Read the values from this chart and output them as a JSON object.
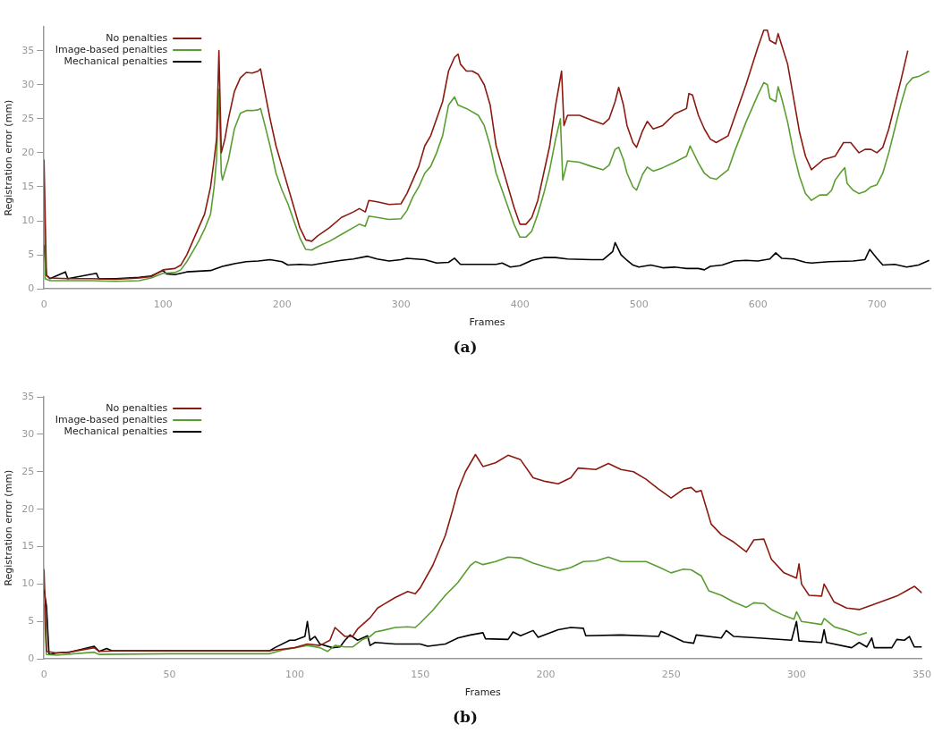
{
  "chart_data": [
    {
      "type": "line",
      "title": "(a)",
      "xlabel": "Frames",
      "ylabel": "Registration error (mm)",
      "xlim": [
        0,
        745
      ],
      "xticks": [
        0,
        100,
        200,
        300,
        400,
        500,
        600,
        700
      ],
      "ylim": [
        0,
        38.5
      ],
      "yticks": [
        0,
        5,
        10,
        15,
        20,
        25,
        30,
        35
      ],
      "grid": false,
      "legend": "top left",
      "marker": "none",
      "line_style": "solid",
      "series": [
        {
          "name": "No penalties",
          "color": "#8b1a10",
          "x": [
            0,
            2,
            5,
            20,
            40,
            60,
            80,
            90,
            100,
            110,
            115,
            120,
            125,
            130,
            135,
            140,
            143,
            145,
            147,
            149,
            152,
            155,
            160,
            165,
            170,
            175,
            180,
            182,
            185,
            190,
            195,
            200,
            205,
            210,
            215,
            220,
            225,
            230,
            240,
            250,
            260,
            265,
            270,
            273,
            280,
            290,
            300,
            305,
            310,
            315,
            320,
            325,
            330,
            335,
            340,
            345,
            348,
            350,
            355,
            360,
            365,
            370,
            375,
            380,
            385,
            390,
            395,
            400,
            405,
            410,
            415,
            420,
            425,
            430,
            435,
            437,
            440,
            450,
            460,
            470,
            475,
            480,
            483,
            487,
            490,
            495,
            498,
            503,
            507,
            512,
            520,
            530,
            540,
            542,
            545,
            550,
            555,
            560,
            565,
            575,
            580,
            590,
            600,
            605,
            608,
            610,
            615,
            617,
            620,
            625,
            630,
            635,
            640,
            645,
            655,
            665,
            672,
            678,
            685,
            690,
            695,
            700,
            705,
            710,
            715,
            720,
            726
          ],
          "values": [
            19,
            2,
            1.6,
            1.5,
            1.5,
            1.4,
            1.6,
            1.8,
            2.8,
            3,
            3.5,
            5,
            7,
            9,
            11,
            15,
            19,
            22,
            35,
            20,
            22,
            25,
            29,
            31,
            31.8,
            31.7,
            32,
            32.3,
            29.5,
            25,
            21,
            18,
            15,
            12,
            9,
            7.2,
            7,
            7.8,
            9,
            10.5,
            11.3,
            11.8,
            11.3,
            13,
            12.8,
            12.4,
            12.5,
            14,
            16,
            18,
            21,
            22.5,
            25,
            27.5,
            32,
            34,
            34.5,
            33,
            32,
            32,
            31.5,
            30,
            27,
            21,
            18,
            15,
            12,
            9.5,
            9.5,
            10.5,
            13,
            17,
            21,
            27,
            32,
            24,
            25.5,
            25.5,
            24.8,
            24.2,
            25,
            27.5,
            29.6,
            27,
            24,
            21.5,
            20.8,
            23.2,
            24.6,
            23.5,
            24,
            25.7,
            26.5,
            28.7,
            28.5,
            25.5,
            23.5,
            22,
            21.5,
            22.5,
            25,
            30,
            35.5,
            38,
            38,
            36.5,
            36,
            37.5,
            35.8,
            33,
            28,
            23,
            19.5,
            17.5,
            19,
            19.5,
            21.5,
            21.5,
            20,
            20.5,
            20.5,
            20,
            20.8,
            23.5,
            27,
            30.5,
            35
          ]
        },
        {
          "name": "Image-based penalties",
          "color": "#5a9e32",
          "x": [
            0,
            1,
            5,
            20,
            40,
            60,
            80,
            90,
            100,
            110,
            115,
            120,
            125,
            130,
            135,
            140,
            143,
            145,
            147,
            149,
            150,
            155,
            160,
            165,
            170,
            175,
            180,
            182,
            185,
            190,
            195,
            200,
            205,
            210,
            215,
            220,
            225,
            230,
            240,
            250,
            260,
            265,
            270,
            273,
            280,
            290,
            300,
            305,
            310,
            315,
            320,
            325,
            330,
            335,
            340,
            345,
            348,
            355,
            365,
            370,
            375,
            380,
            385,
            390,
            395,
            400,
            405,
            410,
            415,
            420,
            425,
            430,
            434,
            436,
            440,
            450,
            460,
            470,
            475,
            480,
            483,
            487,
            490,
            495,
            498,
            503,
            507,
            512,
            520,
            530,
            540,
            543,
            550,
            555,
            560,
            565,
            575,
            580,
            590,
            600,
            605,
            608,
            610,
            615,
            617,
            620,
            625,
            630,
            635,
            640,
            645,
            652,
            658,
            662,
            665,
            670,
            673,
            675,
            680,
            685,
            690,
            695,
            700,
            705,
            710,
            715,
            720,
            725,
            730,
            735,
            744
          ],
          "values": [
            15,
            1.5,
            1.2,
            1.2,
            1.2,
            1.1,
            1.2,
            1.6,
            2.3,
            2.4,
            2.8,
            4,
            5.5,
            7,
            8.8,
            11,
            15,
            19,
            29.3,
            17,
            16,
            19,
            23.5,
            25.8,
            26.2,
            26.2,
            26.3,
            26.5,
            24.5,
            21,
            17,
            14.5,
            12.5,
            10,
            7.5,
            5.8,
            5.7,
            6.2,
            7,
            8,
            9,
            9.5,
            9.2,
            10.7,
            10.5,
            10.2,
            10.3,
            11.5,
            13.5,
            15,
            17,
            18,
            20,
            22.5,
            27,
            28.2,
            27,
            26.5,
            25.5,
            24,
            21,
            17,
            14.5,
            12,
            9.5,
            7.6,
            7.6,
            8.5,
            11,
            14,
            17.5,
            22,
            25,
            16,
            18.8,
            18.6,
            18,
            17.5,
            18.2,
            20.5,
            20.8,
            19,
            17,
            15,
            14.5,
            16.8,
            17.9,
            17.3,
            17.8,
            18.6,
            19.5,
            21,
            18.5,
            17,
            16.3,
            16.1,
            17.5,
            20,
            24.5,
            28.5,
            30.3,
            30,
            28,
            27.5,
            29.7,
            28,
            24.5,
            20,
            16.5,
            14,
            13,
            13.8,
            13.8,
            14.5,
            16,
            17.2,
            17.8,
            15.5,
            14.5,
            14,
            14.3,
            15,
            15.3,
            17,
            20,
            23.5,
            27,
            30,
            31,
            31.2,
            32
          ]
        },
        {
          "name": "Mechanical penalties",
          "color": "#000000",
          "x": [
            0,
            2,
            5,
            18,
            20,
            44,
            46,
            60,
            80,
            90,
            95,
            100,
            103,
            110,
            120,
            130,
            140,
            150,
            160,
            170,
            180,
            190,
            200,
            205,
            215,
            225,
            235,
            250,
            260,
            272,
            280,
            290,
            300,
            305,
            320,
            330,
            340,
            345,
            350,
            360,
            380,
            385,
            392,
            400,
            410,
            420,
            430,
            440,
            460,
            470,
            478,
            480,
            485,
            490,
            495,
            500,
            510,
            520,
            530,
            540,
            550,
            555,
            560,
            570,
            580,
            590,
            600,
            610,
            615,
            620,
            630,
            640,
            645,
            660,
            680,
            690,
            694,
            700,
            705,
            715,
            725,
            735,
            744
          ],
          "values": [
            6.5,
            2,
            1.5,
            2.5,
            1.5,
            2.3,
            1.5,
            1.5,
            1.7,
            1.9,
            2.3,
            2.7,
            2.2,
            2.1,
            2.5,
            2.6,
            2.7,
            3.3,
            3.7,
            4,
            4.1,
            4.3,
            4,
            3.5,
            3.6,
            3.5,
            3.8,
            4.2,
            4.4,
            4.8,
            4.4,
            4.1,
            4.3,
            4.5,
            4.3,
            3.8,
            3.9,
            4.5,
            3.6,
            3.6,
            3.6,
            3.8,
            3.2,
            3.4,
            4.2,
            4.6,
            4.6,
            4.4,
            4.3,
            4.3,
            5.5,
            6.8,
            5,
            4.2,
            3.5,
            3.2,
            3.5,
            3.1,
            3.2,
            3,
            3,
            2.8,
            3.3,
            3.5,
            4.1,
            4.2,
            4.1,
            4.4,
            5.3,
            4.5,
            4.4,
            3.9,
            3.8,
            4,
            4.1,
            4.3,
            5.8,
            4.5,
            3.5,
            3.6,
            3.2,
            3.5,
            4.2
          ]
        }
      ]
    },
    {
      "type": "line",
      "title": "(b)",
      "xlabel": "Frames",
      "ylabel": "Registration error (mm)",
      "xlim": [
        0,
        350
      ],
      "xticks": [
        0,
        50,
        100,
        150,
        200,
        250,
        300,
        350
      ],
      "ylim": [
        0,
        35
      ],
      "yticks": [
        0,
        5,
        10,
        15,
        20,
        25,
        30,
        35
      ],
      "grid": false,
      "legend": "top left",
      "marker": "none",
      "line_style": "solid",
      "series": [
        {
          "name": "No penalties",
          "color": "#8b1a10",
          "x": [
            0,
            1,
            5,
            10,
            20,
            22,
            30,
            50,
            90,
            100,
            105,
            110,
            114,
            116,
            120,
            123,
            125,
            130,
            133,
            135,
            140,
            145,
            148,
            150,
            155,
            160,
            163,
            165,
            168,
            172,
            175,
            180,
            185,
            190,
            195,
            200,
            205,
            210,
            213,
            220,
            225,
            230,
            235,
            240,
            245,
            250,
            255,
            258,
            260,
            262,
            266,
            270,
            275,
            280,
            283,
            287,
            290,
            295,
            300,
            301,
            302,
            305,
            310,
            311,
            315,
            320,
            325,
            330,
            340,
            347,
            350
          ],
          "values": [
            12,
            1,
            0.8,
            0.9,
            1.5,
            1,
            1.1,
            1.1,
            1.1,
            1.5,
            2,
            1.8,
            2.5,
            4.2,
            3,
            3,
            4,
            5.5,
            6.8,
            7.2,
            8.2,
            9,
            8.7,
            9.5,
            12.5,
            16.5,
            20,
            22.5,
            25,
            27.3,
            25.7,
            26.2,
            27.2,
            26.6,
            24.2,
            23.7,
            23.4,
            24.2,
            25.5,
            25.3,
            26.1,
            25.3,
            25,
            24,
            22.7,
            21.5,
            22.7,
            22.9,
            22.3,
            22.5,
            18,
            16.6,
            15.6,
            14.3,
            15.9,
            16,
            13.3,
            11.5,
            10.8,
            12.7,
            10,
            8.5,
            8.4,
            10,
            7.6,
            6.8,
            6.6,
            7.2,
            8.4,
            9.7,
            8.8
          ]
        },
        {
          "name": "Image-based penalties",
          "color": "#5a9e32",
          "x": [
            0,
            1,
            5,
            20,
            22,
            50,
            90,
            95,
            105,
            110,
            113,
            116,
            120,
            123,
            127,
            130,
            132,
            135,
            140,
            145,
            148,
            150,
            155,
            160,
            165,
            170,
            172,
            175,
            180,
            185,
            190,
            195,
            200,
            205,
            210,
            215,
            220,
            225,
            230,
            240,
            245,
            250,
            255,
            258,
            262,
            265,
            270,
            275,
            280,
            283,
            287,
            290,
            295,
            299,
            300,
            302,
            310,
            311,
            315,
            320,
            325,
            328
          ],
          "values": [
            7.3,
            0.6,
            0.5,
            0.9,
            0.6,
            0.7,
            0.7,
            1.2,
            1.8,
            1.5,
            1,
            1.8,
            1.6,
            1.6,
            2.6,
            3,
            3.6,
            3.8,
            4.2,
            4.3,
            4.2,
            4.8,
            6.5,
            8.5,
            10.2,
            12.5,
            13,
            12.6,
            13,
            13.6,
            13.5,
            12.8,
            12.3,
            11.8,
            12.2,
            13,
            13.1,
            13.6,
            13,
            13,
            12.3,
            11.5,
            12,
            11.9,
            11.1,
            9.1,
            8.5,
            7.6,
            6.9,
            7.5,
            7.4,
            6.6,
            5.8,
            5.3,
            6.3,
            5,
            4.6,
            5.4,
            4.3,
            3.8,
            3.2,
            3.5
          ]
        },
        {
          "name": "Mechanical penalties",
          "color": "#000000",
          "x": [
            0,
            1,
            2,
            5,
            10,
            20,
            22,
            25,
            27,
            50,
            90,
            92,
            98,
            100,
            104,
            105,
            106,
            108,
            110,
            115,
            118,
            120,
            122,
            125,
            129,
            130,
            132,
            140,
            150,
            153,
            160,
            165,
            170,
            175,
            176,
            185,
            187,
            190,
            195,
            197,
            205,
            210,
            215,
            216,
            230,
            245,
            246,
            250,
            255,
            259,
            260,
            270,
            272,
            275,
            285,
            298,
            300,
            301,
            310,
            311,
            312,
            322,
            325,
            328,
            330,
            331,
            338,
            340,
            343,
            345,
            347,
            350
          ],
          "values": [
            9.3,
            7,
            0.6,
            0.8,
            0.9,
            1.7,
            1,
            1.4,
            1.1,
            1.1,
            1.1,
            1.5,
            2.5,
            2.5,
            3,
            5,
            2.5,
            3,
            2,
            1.5,
            1.6,
            2.5,
            3.2,
            2.5,
            3.1,
            1.8,
            2.2,
            2,
            2,
            1.7,
            2,
            2.8,
            3.2,
            3.5,
            2.7,
            2.6,
            3.6,
            3.1,
            3.8,
            2.9,
            3.9,
            4.2,
            4.1,
            3.1,
            3.2,
            3,
            3.7,
            3.1,
            2.3,
            2.1,
            3.2,
            2.8,
            3.8,
            3,
            2.8,
            2.5,
            5,
            2.4,
            2.2,
            3.9,
            2.2,
            1.5,
            2.2,
            1.6,
            2.8,
            1.5,
            1.5,
            2.6,
            2.5,
            3,
            1.6,
            1.6
          ]
        }
      ]
    }
  ]
}
